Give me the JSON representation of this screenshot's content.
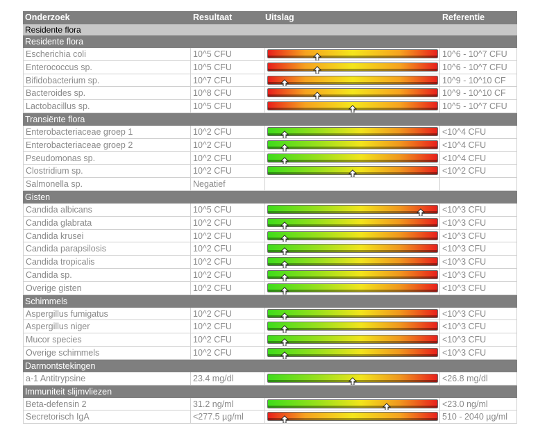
{
  "header": {
    "col_test": "Onderzoek",
    "col_result": "Resultaat",
    "col_outcome": "Uitslag",
    "col_reference": "Referentie"
  },
  "group_title": "Residente flora",
  "colors": {
    "header_bg": "#7f7f7f",
    "subheader_bg": "#c8c8c8",
    "text_grey": "#8a8a8a",
    "gauge_red": "#e8201c",
    "gauge_yellow": "#f4e61c",
    "gauge_green": "#3fdc1c"
  },
  "sections": [
    {
      "title": "Residente flora",
      "rows": [
        {
          "name": "Escherichia coli",
          "result": "10^5 CFU",
          "reference": "10^6 - 10^7 CFU",
          "gauge": "red-yellow-red",
          "marker": 0.29
        },
        {
          "name": "Enterococcus sp.",
          "result": "10^5 CFU",
          "reference": "10^6 - 10^7 CFU",
          "gauge": "red-yellow-red",
          "marker": 0.29
        },
        {
          "name": "Bifidobacterium sp.",
          "result": "10^7 CFU",
          "reference": "10^9 - 10^10 CF",
          "gauge": "red-yellow-red",
          "marker": 0.1
        },
        {
          "name": "Bacteroides sp.",
          "result": "10^8 CFU",
          "reference": "10^9 - 10^10 CF",
          "gauge": "red-yellow-red",
          "marker": 0.29
        },
        {
          "name": "Lactobacillus sp.",
          "result": "10^5 CFU",
          "reference": "10^5 - 10^7 CFU",
          "gauge": "red-yellow-red",
          "marker": 0.5
        }
      ]
    },
    {
      "title": "Transiënte flora",
      "rows": [
        {
          "name": "Enterobacteriaceae groep 1",
          "result": "10^2 CFU",
          "reference": "<10^4 CFU",
          "gauge": "green-red",
          "marker": 0.1
        },
        {
          "name": "Enterobacteriaceae groep 2",
          "result": "10^2 CFU",
          "reference": "<10^4 CFU",
          "gauge": "green-red",
          "marker": 0.1
        },
        {
          "name": "Pseudomonas sp.",
          "result": "10^2 CFU",
          "reference": "<10^4 CFU",
          "gauge": "green-red",
          "marker": 0.1
        },
        {
          "name": "Clostridium sp.",
          "result": "10^2 CFU",
          "reference": "<10^2 CFU",
          "gauge": "green-red",
          "marker": 0.5
        },
        {
          "name": "Salmonella sp.",
          "result": "Negatief",
          "reference": "",
          "gauge": "none"
        }
      ]
    },
    {
      "title": "Gisten",
      "rows": [
        {
          "name": "Candida albicans",
          "result": "10^5 CFU",
          "reference": "<10^3 CFU",
          "gauge": "green-red",
          "marker": 0.9
        },
        {
          "name": "Candida glabrata",
          "result": "10^2 CFU",
          "reference": "<10^3 CFU",
          "gauge": "green-red",
          "marker": 0.1
        },
        {
          "name": "Candida krusei",
          "result": "10^2 CFU",
          "reference": "<10^3 CFU",
          "gauge": "green-red",
          "marker": 0.1
        },
        {
          "name": "Candida parapsilosis",
          "result": "10^2 CFU",
          "reference": "<10^3 CFU",
          "gauge": "green-red",
          "marker": 0.1
        },
        {
          "name": "Candida tropicalis",
          "result": "10^2 CFU",
          "reference": "<10^3 CFU",
          "gauge": "green-red",
          "marker": 0.1
        },
        {
          "name": "Candida sp.",
          "result": "10^2 CFU",
          "reference": "<10^3 CFU",
          "gauge": "green-red",
          "marker": 0.1
        },
        {
          "name": "Overige gisten",
          "result": "10^2 CFU",
          "reference": "<10^3 CFU",
          "gauge": "green-red",
          "marker": 0.1
        }
      ]
    },
    {
      "title": "Schimmels",
      "rows": [
        {
          "name": "Aspergillus fumigatus",
          "result": "10^2 CFU",
          "reference": "<10^3 CFU",
          "gauge": "green-red",
          "marker": 0.1
        },
        {
          "name": "Aspergillus niger",
          "result": "10^2 CFU",
          "reference": "<10^3 CFU",
          "gauge": "green-red",
          "marker": 0.1
        },
        {
          "name": "Mucor species",
          "result": "10^2 CFU",
          "reference": "<10^3 CFU",
          "gauge": "green-red",
          "marker": 0.1
        },
        {
          "name": "Overige schimmels",
          "result": "10^2 CFU",
          "reference": "<10^3 CFU",
          "gauge": "green-red",
          "marker": 0.1
        }
      ]
    },
    {
      "title": "Darmontstekingen",
      "rows": [
        {
          "name": "a-1 Antitrypsine",
          "result": "23.4 mg/dl",
          "reference": "<26.8 mg/dl",
          "gauge": "green-red",
          "marker": 0.5
        }
      ]
    },
    {
      "title": "Immuniteit slijmvliezen",
      "rows": [
        {
          "name": "Beta-defensin 2",
          "result": "31.2 ng/ml",
          "reference": "<23.0 ng/ml",
          "gauge": "green-red",
          "marker": 0.7
        },
        {
          "name": "Secretorisch IgA",
          "result": "<277.5 µg/ml",
          "reference": "510 - 2040 µg/ml",
          "gauge": "red-yellow-red",
          "marker": 0.1
        }
      ]
    }
  ]
}
